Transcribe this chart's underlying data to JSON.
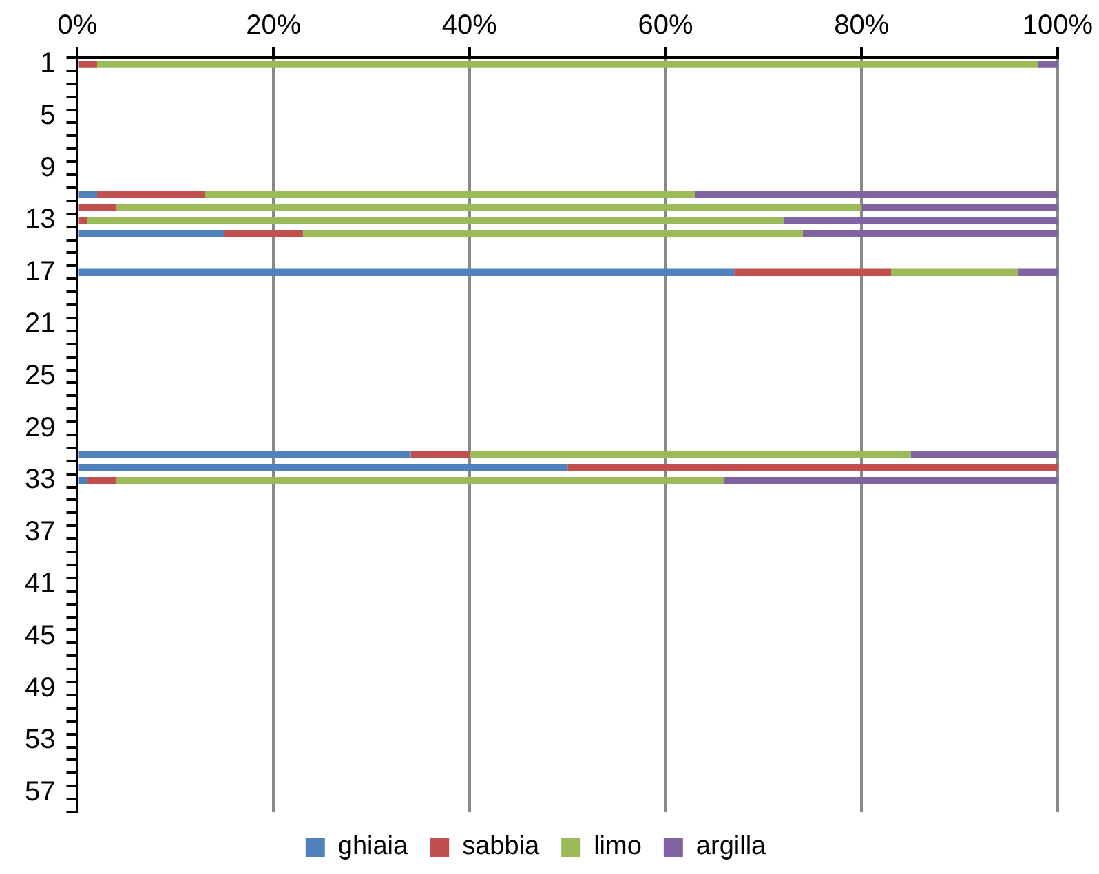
{
  "chart_data": {
    "type": "bar",
    "orientation": "horizontal",
    "stacked": true,
    "categories": [
      "1",
      null,
      null,
      null,
      "5",
      null,
      null,
      null,
      "9",
      null,
      null,
      null,
      "13",
      null,
      null,
      null,
      "17",
      null,
      null,
      null,
      "21",
      null,
      null,
      null,
      "25",
      null,
      null,
      null,
      "29",
      null,
      null,
      null,
      "33",
      null,
      null,
      null,
      "37",
      null,
      null,
      null,
      "41",
      null,
      null,
      null,
      "45",
      null,
      null,
      null,
      "49",
      null,
      null,
      null,
      "53",
      null,
      null,
      null,
      "57",
      null
    ],
    "series": [
      {
        "name": "ghiaia",
        "color": "#4f81bd",
        "values": [
          0,
          null,
          null,
          null,
          null,
          null,
          null,
          null,
          null,
          null,
          2,
          0,
          0,
          15,
          null,
          null,
          67,
          null,
          null,
          null,
          null,
          null,
          null,
          null,
          null,
          null,
          null,
          null,
          null,
          null,
          34,
          50,
          1,
          null,
          null,
          null,
          null,
          null,
          null,
          null,
          null,
          null,
          null,
          null,
          null,
          null,
          null,
          null,
          null,
          null,
          null,
          null,
          null,
          null,
          null,
          null,
          null,
          null
        ]
      },
      {
        "name": "sabbia",
        "color": "#c0504d",
        "values": [
          2,
          null,
          null,
          null,
          null,
          null,
          null,
          null,
          null,
          null,
          11,
          4,
          1,
          8,
          null,
          null,
          16,
          null,
          null,
          null,
          null,
          null,
          null,
          null,
          null,
          null,
          null,
          null,
          null,
          null,
          6,
          50,
          3,
          null,
          null,
          null,
          null,
          null,
          null,
          null,
          null,
          null,
          null,
          null,
          null,
          null,
          null,
          null,
          null,
          null,
          null,
          null,
          null,
          null,
          null,
          null,
          null,
          null
        ]
      },
      {
        "name": "limo",
        "color": "#9bbb59",
        "values": [
          96,
          null,
          null,
          null,
          null,
          null,
          null,
          null,
          null,
          null,
          50,
          76,
          71,
          51,
          null,
          null,
          13,
          null,
          null,
          null,
          null,
          null,
          null,
          null,
          null,
          null,
          null,
          null,
          null,
          null,
          45,
          0,
          62,
          null,
          null,
          null,
          null,
          null,
          null,
          null,
          null,
          null,
          null,
          null,
          null,
          null,
          null,
          null,
          null,
          null,
          null,
          null,
          null,
          null,
          null,
          null,
          null,
          null
        ]
      },
      {
        "name": "argilla",
        "color": "#8064a2",
        "values": [
          2,
          null,
          null,
          null,
          null,
          null,
          null,
          null,
          null,
          null,
          37,
          20,
          28,
          26,
          null,
          null,
          4,
          null,
          null,
          null,
          null,
          null,
          null,
          null,
          null,
          null,
          null,
          null,
          null,
          null,
          15,
          0,
          34,
          null,
          null,
          null,
          null,
          null,
          null,
          null,
          null,
          null,
          null,
          null,
          null,
          null,
          null,
          null,
          null,
          null,
          null,
          null,
          null,
          null,
          null,
          null,
          null,
          null
        ]
      }
    ],
    "xlim": [
      0,
      100
    ],
    "xticks": [
      {
        "value": 0,
        "label": "0%"
      },
      {
        "value": 20,
        "label": "20%"
      },
      {
        "value": 40,
        "label": "40%"
      },
      {
        "value": 60,
        "label": "60%"
      },
      {
        "value": 80,
        "label": "80%"
      },
      {
        "value": 100,
        "label": "100%"
      }
    ],
    "grid": "x",
    "legend": "bottom"
  }
}
